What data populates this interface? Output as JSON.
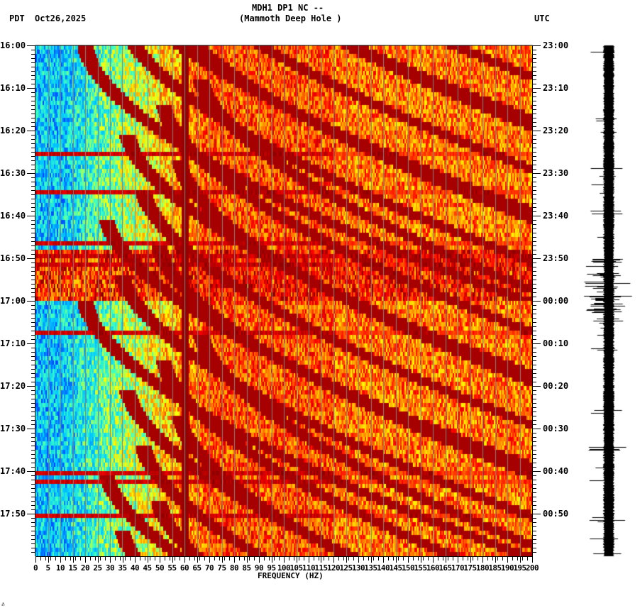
{
  "header": {
    "station_line": "MDH1 DP1 NC --",
    "station_name": "(Mammoth Deep Hole )",
    "left_tz": "PDT",
    "date": "Oct26,2025",
    "right_tz": "UTC"
  },
  "footer_mark": "∴",
  "chart_data": {
    "type": "heatmap",
    "title": "MDH1 DP1 NC -- (Mammoth Deep Hole ) spectrogram",
    "xlabel": "FREQUENCY (HZ)",
    "ylabel_left": "PDT",
    "ylabel_right": "UTC",
    "xlim": [
      0,
      200
    ],
    "x_ticks": [
      0,
      5,
      10,
      15,
      20,
      25,
      30,
      35,
      40,
      45,
      50,
      55,
      60,
      65,
      70,
      75,
      80,
      85,
      90,
      95,
      100,
      105,
      110,
      115,
      120,
      125,
      130,
      135,
      140,
      145,
      150,
      155,
      160,
      165,
      170,
      175,
      180,
      185,
      190,
      195,
      200
    ],
    "y_ticks_left": [
      "16:00",
      "16:10",
      "16:20",
      "16:30",
      "16:40",
      "16:50",
      "17:00",
      "17:10",
      "17:20",
      "17:30",
      "17:40",
      "17:50"
    ],
    "y_ticks_right": [
      "23:00",
      "23:10",
      "23:20",
      "23:30",
      "23:40",
      "23:50",
      "00:00",
      "00:10",
      "00:20",
      "00:30",
      "00:40",
      "00:50"
    ],
    "time_range_minutes": 120,
    "minor_tick_minutes": 1,
    "grid": "vertical lines every 5 Hz",
    "colormap": [
      "#0040ff",
      "#00c8ff",
      "#40ffc0",
      "#ffff00",
      "#ff8000",
      "#ff0000",
      "#8b0000"
    ],
    "features": {
      "persistent_line_hz": 60,
      "chirp_sweeps": [
        {
          "start_min": 0,
          "end_min": 60,
          "note": "curved descending harmonics, min frequency ~20-35 Hz"
        },
        {
          "start_min": 60,
          "end_min": 120,
          "note": "curved descending harmonics, min frequency ~20-35 Hz"
        }
      ],
      "broadband_bands_min": [
        25,
        34,
        46,
        49,
        51,
        67,
        100,
        102,
        110
      ],
      "low_freq_energy_hz": [
        0,
        35
      ],
      "noise_window_min": [
        48,
        60
      ]
    }
  },
  "seismogram": {
    "label": "waveform trace",
    "burst_window_min": [
      50,
      66
    ]
  }
}
